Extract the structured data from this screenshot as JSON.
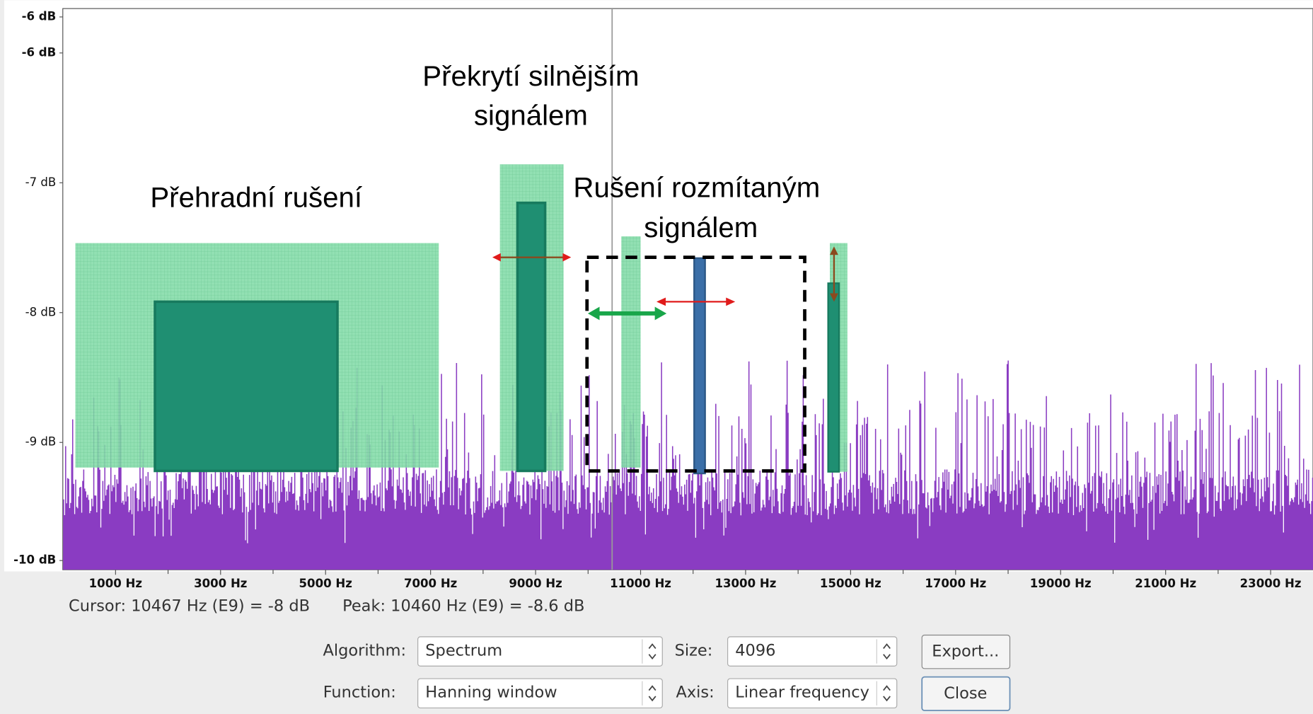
{
  "window": {
    "y_axis_labels": [
      "-6 dB",
      "-6 dB",
      "-7 dB",
      "-8 dB",
      "-9 dB",
      "-10 dB"
    ],
    "x_axis_labels": [
      "1000 Hz",
      "3000 Hz",
      "5000 Hz",
      "7000 Hz",
      "9000 Hz",
      "11000 Hz",
      "13000 Hz",
      "15000 Hz",
      "17000 Hz",
      "19000 Hz",
      "21000 Hz",
      "23000 Hz"
    ],
    "annotations": [
      "Přehradní rušení",
      "Překrytí silnějším",
      "signálem",
      "Rušení rozmítaným",
      "signálem"
    ],
    "status": {
      "cursor": "Cursor: 10467 Hz (E9) = -8 dB",
      "peak": "Peak: 10460 Hz (E9) = -8.6 dB"
    },
    "controls": {
      "algorithm_label": "Algorithm:",
      "algorithm": "Spectrum",
      "size_label": "Size:",
      "size": "4096",
      "export": "Export...",
      "function_label": "Function:",
      "function": "Hanning window",
      "axis_label": "Axis:",
      "axis": "Linear frequency",
      "close": "Close"
    }
  }
}
